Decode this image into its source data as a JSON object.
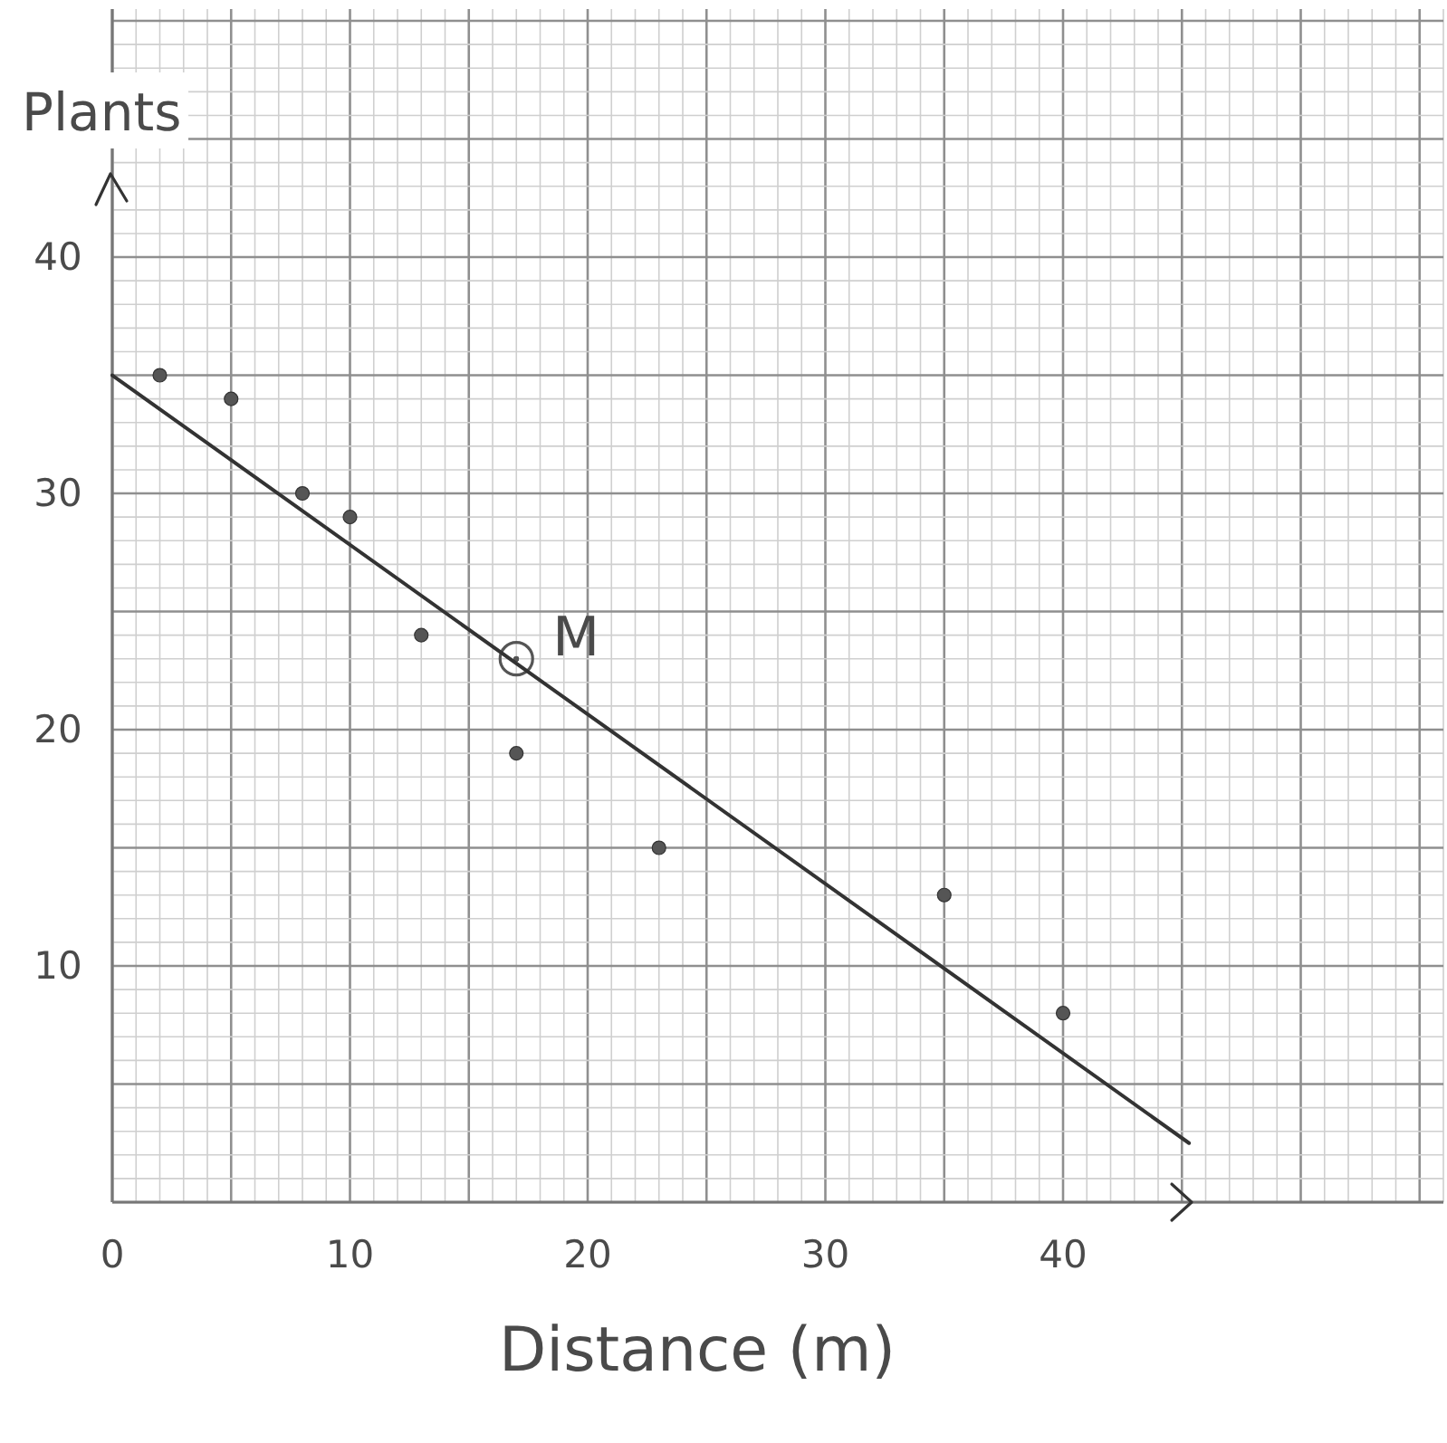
{
  "chart_data": {
    "type": "scatter",
    "xlabel": "Distance (m)",
    "ylabel": "Plants",
    "xlim": [
      0,
      56
    ],
    "ylim": [
      0,
      50.5
    ],
    "xticks": [
      0,
      {
        "value": 1,
        "label": null
      },
      {
        "value": 2,
        "label": null
      },
      {
        "value": 3,
        "label": null
      },
      {
        "value": 4,
        "label": null
      },
      {
        "value": 5,
        "label": null
      },
      {
        "value": 6,
        "label": null
      },
      {
        "value": 7,
        "label": null
      },
      {
        "value": 8,
        "label": null
      },
      {
        "value": 9,
        "label": null
      },
      10,
      {
        "value": 11,
        "label": null
      },
      {
        "value": 12,
        "label": null
      },
      {
        "value": 13,
        "label": null
      },
      {
        "value": 14,
        "label": null
      },
      {
        "value": 15,
        "label": null
      },
      {
        "value": 16,
        "label": null
      },
      {
        "value": 17,
        "label": null
      },
      {
        "value": 18,
        "label": null
      },
      {
        "value": 19,
        "label": null
      },
      20,
      {
        "value": 21,
        "label": null
      },
      {
        "value": 22,
        "label": null
      },
      {
        "value": 23,
        "label": null
      },
      {
        "value": 24,
        "label": null
      },
      {
        "value": 25,
        "label": null
      },
      {
        "value": 26,
        "label": null
      },
      {
        "value": 27,
        "label": null
      },
      {
        "value": 28,
        "label": null
      },
      {
        "value": 29,
        "label": null
      },
      30,
      {
        "value": 31,
        "label": null
      },
      {
        "value": 32,
        "label": null
      },
      {
        "value": 33,
        "label": null
      },
      {
        "value": 34,
        "label": null
      },
      {
        "value": 35,
        "label": null
      },
      {
        "value": 36,
        "label": null
      },
      {
        "value": 37,
        "label": null
      },
      {
        "value": 38,
        "label": null
      },
      {
        "value": 39,
        "label": null
      },
      40,
      {
        "value": 41,
        "label": null
      },
      {
        "value": 42,
        "label": null
      },
      {
        "value": 43,
        "label": null
      },
      {
        "value": 44,
        "label": null
      },
      {
        "value": 45,
        "label": null
      },
      {
        "value": 46,
        "label": null
      },
      {
        "value": 47,
        "label": null
      },
      {
        "value": 48,
        "label": null
      },
      {
        "value": 49,
        "label": null
      },
      {
        "value": 50,
        "label": null
      },
      {
        "value": 51,
        "label": null
      },
      {
        "value": 52,
        "label": null
      },
      {
        "value": 53,
        "label": null
      },
      {
        "value": 54,
        "label": null
      },
      {
        "value": 55,
        "label": null
      },
      {
        "value": 56,
        "label": null
      }
    ],
    "yticks": [
      {
        "value": 0,
        "label": null
      },
      {
        "value": 1,
        "label": null
      },
      {
        "value": 2,
        "label": null
      },
      {
        "value": 3,
        "label": null
      },
      {
        "value": 4,
        "label": null
      },
      {
        "value": 5,
        "label": null
      },
      {
        "value": 6,
        "label": null
      },
      {
        "value": 7,
        "label": null
      },
      {
        "value": 8,
        "label": null
      },
      {
        "value": 9,
        "label": null
      },
      10,
      {
        "value": 11,
        "label": null
      },
      {
        "value": 12,
        "label": null
      },
      {
        "value": 13,
        "label": null
      },
      {
        "value": 14,
        "label": null
      },
      {
        "value": 15,
        "label": null
      },
      {
        "value": 16,
        "label": null
      },
      {
        "value": 17,
        "label": null
      },
      {
        "value": 18,
        "label": null
      },
      {
        "value": 19,
        "label": null
      },
      20,
      {
        "value": 21,
        "label": null
      },
      {
        "value": 22,
        "label": null
      },
      {
        "value": 23,
        "label": null
      },
      {
        "value": 24,
        "label": null
      },
      {
        "value": 25,
        "label": null
      },
      {
        "value": 26,
        "label": null
      },
      {
        "value": 27,
        "label": null
      },
      {
        "value": 28,
        "label": null
      },
      {
        "value": 29,
        "label": null
      },
      30,
      {
        "value": 31,
        "label": null
      },
      {
        "value": 32,
        "label": null
      },
      {
        "value": 33,
        "label": null
      },
      {
        "value": 34,
        "label": null
      },
      {
        "value": 35,
        "label": null
      },
      {
        "value": 36,
        "label": null
      },
      {
        "value": 37,
        "label": null
      },
      {
        "value": 38,
        "label": null
      },
      {
        "value": 39,
        "label": null
      },
      40,
      {
        "value": 41,
        "label": null
      },
      {
        "value": 42,
        "label": null
      },
      {
        "value": 43,
        "label": null
      },
      {
        "value": 44,
        "label": null
      },
      {
        "value": 45,
        "label": null
      },
      {
        "value": 46,
        "label": null
      },
      {
        "value": 47,
        "label": null
      },
      {
        "value": 48,
        "label": null
      },
      {
        "value": 49,
        "label": null
      },
      {
        "value": 50,
        "label": null
      }
    ],
    "grid": true,
    "marker": "circle",
    "series": [
      {
        "color": "#555555",
        "x": [
          2,
          5,
          8,
          10,
          13,
          17,
          23,
          35,
          40
        ],
        "values": [
          35,
          34,
          30,
          29,
          24,
          19,
          15,
          13,
          8
        ]
      },
      {
        "name": "M",
        "color": "#555555",
        "x": [
          17
        ],
        "values": [
          23
        ]
      },
      {
        "type": "line",
        "marker": "none",
        "color": "#333333",
        "x": [
          0,
          45.3
        ],
        "values": [
          35,
          2.5
        ]
      }
    ]
  }
}
